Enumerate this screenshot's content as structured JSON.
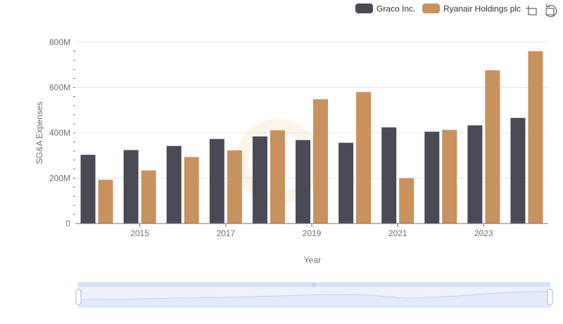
{
  "chart_data": {
    "type": "bar",
    "xlabel": "Year",
    "ylabel": "SG&A Expenses",
    "ylim": [
      0,
      800000000
    ],
    "y_ticks": [
      {
        "value": 0,
        "label": "0"
      },
      {
        "value": 200000000,
        "label": "200M"
      },
      {
        "value": 400000000,
        "label": "400M"
      },
      {
        "value": 600000000,
        "label": "600M"
      },
      {
        "value": 800000000,
        "label": "800M"
      }
    ],
    "categories": [
      "2014",
      "2015",
      "2016",
      "2017",
      "2018",
      "2019",
      "2020",
      "2021",
      "2022",
      "2023",
      "2024"
    ],
    "x_tick_labels": [
      "",
      "2015",
      "",
      "2017",
      "",
      "2019",
      "",
      "2021",
      "",
      "2023",
      ""
    ],
    "series": [
      {
        "name": "Graco Inc.",
        "color": "#4a4a57",
        "values": [
          303000000,
          324000000,
          342000000,
          373000000,
          384000000,
          368000000,
          356000000,
          424000000,
          405000000,
          433000000,
          466000000
        ]
      },
      {
        "name": "Ryanair Holdings plc",
        "color": "#c9915b",
        "values": [
          193000000,
          234000000,
          293000000,
          323000000,
          411000000,
          548000000,
          580000000,
          200000000,
          413000000,
          676000000,
          760000000
        ]
      }
    ],
    "legend": {
      "position": "top-right"
    },
    "grid": true,
    "dataZoom": {
      "start": 0,
      "end": 100
    }
  },
  "toolbox": {
    "icons": [
      "zoom-icon",
      "restore-icon"
    ]
  },
  "watermark": {
    "icon": "watermark-logo"
  }
}
